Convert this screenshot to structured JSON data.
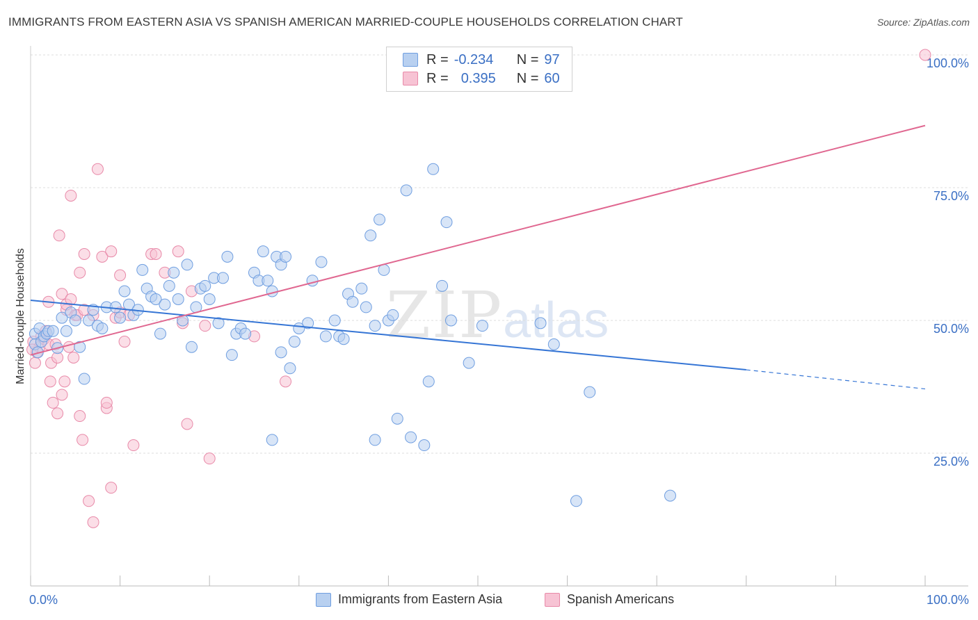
{
  "header": {
    "title": "IMMIGRANTS FROM EASTERN ASIA VS SPANISH AMERICAN MARRIED-COUPLE HOUSEHOLDS CORRELATION CHART",
    "source": "Source: ZipAtlas.com"
  },
  "watermark": {
    "zip": "ZIP",
    "atlas": "atlas"
  },
  "legend": {
    "rows": [
      {
        "r_label": "R =",
        "r_value": "-0.234",
        "n_label": "N =",
        "n_value": "97"
      },
      {
        "r_label": "R =",
        "r_value": "0.395",
        "n_label": "N =",
        "n_value": "60"
      }
    ]
  },
  "colors": {
    "blue_fill": "#b8d0f0",
    "blue_stroke": "#6f9ee0",
    "blue_line": "#3575d5",
    "pink_fill": "#f7c3d4",
    "pink_stroke": "#e889a8",
    "pink_line": "#e06790",
    "grid": "#dddddd",
    "tick_text": "#3a6fc4"
  },
  "chart_data": {
    "type": "scatter",
    "title": "IMMIGRANTS FROM EASTERN ASIA VS SPANISH AMERICAN MARRIED-COUPLE HOUSEHOLDS CORRELATION CHART",
    "xlabel": "",
    "ylabel": "Married-couple Households",
    "xlim": [
      0,
      100
    ],
    "ylim": [
      0,
      100
    ],
    "x_tick_labels": [
      "0.0%",
      "100.0%"
    ],
    "y_ticks": [
      25,
      50,
      75,
      100
    ],
    "y_tick_labels": [
      "25.0%",
      "50.0%",
      "75.0%",
      "100.0%"
    ],
    "grid": true,
    "legend_position": "top-center",
    "series": [
      {
        "name": "Immigrants from Eastern Asia",
        "color": "#6f9ee0",
        "r": -0.234,
        "n": 97,
        "trend": {
          "x0": 0,
          "y0": 53.8,
          "x1": 80,
          "y1": 40.7,
          "dash_to_x": 100,
          "dash_to_y": 37.1
        },
        "points": [
          [
            0.5,
            47.5
          ],
          [
            0.5,
            45.5
          ],
          [
            0.8,
            44
          ],
          [
            1,
            48.5
          ],
          [
            1.2,
            46
          ],
          [
            1.5,
            47
          ],
          [
            1.8,
            47.5
          ],
          [
            2,
            48
          ],
          [
            2.5,
            48
          ],
          [
            3,
            44.8
          ],
          [
            3.5,
            50.5
          ],
          [
            4,
            48
          ],
          [
            4.5,
            51.5
          ],
          [
            5,
            50
          ],
          [
            5.5,
            45
          ],
          [
            6,
            39
          ],
          [
            6.5,
            50
          ],
          [
            7,
            52
          ],
          [
            7.5,
            49
          ],
          [
            8,
            48.5
          ],
          [
            8.5,
            52.5
          ],
          [
            9.5,
            52.5
          ],
          [
            10,
            50.5
          ],
          [
            10.5,
            55.5
          ],
          [
            11,
            53
          ],
          [
            11.5,
            51
          ],
          [
            12,
            52
          ],
          [
            12.5,
            59.5
          ],
          [
            13,
            56
          ],
          [
            13.5,
            54.5
          ],
          [
            14,
            54
          ],
          [
            14.5,
            47.5
          ],
          [
            15,
            53
          ],
          [
            15.5,
            56.5
          ],
          [
            16,
            59
          ],
          [
            16.5,
            54
          ],
          [
            17,
            50
          ],
          [
            17.5,
            60.5
          ],
          [
            18,
            45
          ],
          [
            18.5,
            52.5
          ],
          [
            19,
            56
          ],
          [
            19.5,
            56.5
          ],
          [
            20,
            54
          ],
          [
            20.5,
            58
          ],
          [
            21,
            49.5
          ],
          [
            21.5,
            58
          ],
          [
            22,
            62
          ],
          [
            22.5,
            43.5
          ],
          [
            23,
            47.5
          ],
          [
            23.5,
            48.5
          ],
          [
            24,
            47.5
          ],
          [
            25,
            59
          ],
          [
            25.5,
            57.5
          ],
          [
            26,
            63
          ],
          [
            26.5,
            57.5
          ],
          [
            27,
            55.5
          ],
          [
            27.5,
            62
          ],
          [
            28,
            60.5
          ],
          [
            28.5,
            62
          ],
          [
            29,
            41
          ],
          [
            29.5,
            46
          ],
          [
            30,
            48.5
          ],
          [
            31,
            49.5
          ],
          [
            31.5,
            57.5
          ],
          [
            32.5,
            61
          ],
          [
            33,
            47
          ],
          [
            34,
            50
          ],
          [
            34.5,
            47
          ],
          [
            35,
            46.5
          ],
          [
            35.5,
            55
          ],
          [
            36,
            53.5
          ],
          [
            37,
            56
          ],
          [
            37.5,
            52.5
          ],
          [
            38,
            66
          ],
          [
            38.5,
            49
          ],
          [
            38.5,
            27.5
          ],
          [
            39,
            69
          ],
          [
            39.5,
            59.5
          ],
          [
            40,
            50
          ],
          [
            40.5,
            51
          ],
          [
            41,
            31.5
          ],
          [
            42,
            74.5
          ],
          [
            42.5,
            28
          ],
          [
            44,
            26.5
          ],
          [
            44.5,
            38.5
          ],
          [
            45,
            78.5
          ],
          [
            46,
            56.5
          ],
          [
            46.5,
            68.5
          ],
          [
            47,
            50
          ],
          [
            49,
            42
          ],
          [
            50.5,
            49
          ],
          [
            58.5,
            45.5
          ],
          [
            57,
            49.5
          ],
          [
            61,
            16
          ],
          [
            62.5,
            36.5
          ],
          [
            71.5,
            17
          ],
          [
            27,
            27.5
          ],
          [
            28,
            44
          ]
        ]
      },
      {
        "name": "Spanish Americans",
        "color": "#e889a8",
        "r": 0.395,
        "n": 60,
        "trend": {
          "x0": 0,
          "y0": 43.5,
          "x1": 100,
          "y1": 86.7
        },
        "points": [
          [
            0.3,
            46
          ],
          [
            0.5,
            42
          ],
          [
            0.7,
            44
          ],
          [
            1,
            45
          ],
          [
            1.2,
            47
          ],
          [
            1.5,
            46.5
          ],
          [
            1.7,
            48
          ],
          [
            2,
            45.5
          ],
          [
            2,
            53.5
          ],
          [
            2.2,
            38.5
          ],
          [
            2.3,
            42
          ],
          [
            2.5,
            34.5
          ],
          [
            2.8,
            45.5
          ],
          [
            3,
            43
          ],
          [
            3,
            32.5
          ],
          [
            3.2,
            66
          ],
          [
            3.5,
            36
          ],
          [
            3.5,
            55
          ],
          [
            3.8,
            38.5
          ],
          [
            4,
            52
          ],
          [
            4,
            53
          ],
          [
            4.3,
            45
          ],
          [
            4.5,
            73.5
          ],
          [
            4.5,
            54
          ],
          [
            4.8,
            43
          ],
          [
            5,
            51
          ],
          [
            5.2,
            51
          ],
          [
            5.5,
            59
          ],
          [
            5.5,
            32
          ],
          [
            5.8,
            27.5
          ],
          [
            6,
            62.5
          ],
          [
            6,
            52
          ],
          [
            6.5,
            16
          ],
          [
            7,
            51
          ],
          [
            7,
            12
          ],
          [
            7.5,
            78.5
          ],
          [
            8,
            62
          ],
          [
            8.5,
            33.5
          ],
          [
            8.5,
            34.5
          ],
          [
            9,
            18.5
          ],
          [
            9,
            63
          ],
          [
            9.5,
            50.5
          ],
          [
            10,
            51.5
          ],
          [
            10,
            58.5
          ],
          [
            10.5,
            46
          ],
          [
            11,
            51
          ],
          [
            11.5,
            26.5
          ],
          [
            13.5,
            62.5
          ],
          [
            14,
            62.5
          ],
          [
            15,
            59
          ],
          [
            16.5,
            63
          ],
          [
            17,
            49.5
          ],
          [
            17.5,
            30.5
          ],
          [
            18,
            55.5
          ],
          [
            19.5,
            49
          ],
          [
            20,
            24
          ],
          [
            25,
            47
          ],
          [
            28.5,
            38.5
          ],
          [
            100,
            100
          ],
          [
            0.2,
            44.5
          ]
        ]
      }
    ]
  },
  "bottom_legend": {
    "items": [
      {
        "label": "Immigrants from Eastern Asia"
      },
      {
        "label": "Spanish Americans"
      }
    ]
  }
}
